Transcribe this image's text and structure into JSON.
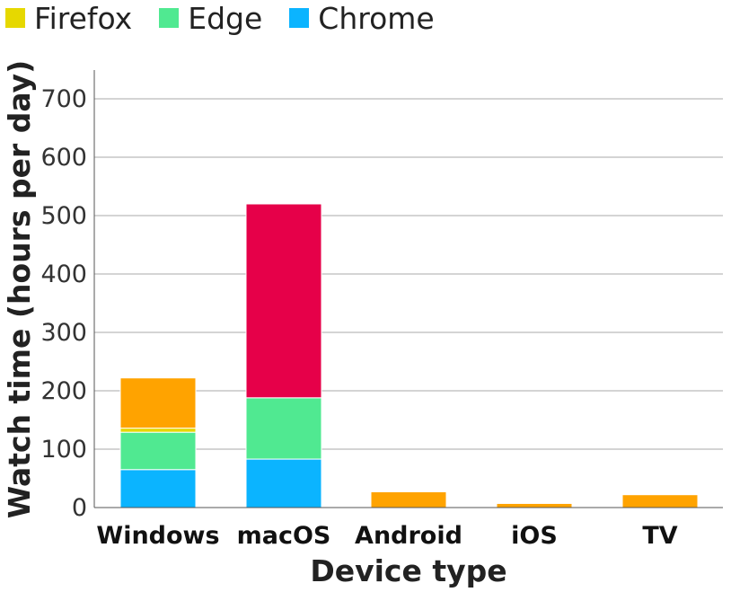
{
  "chart_data": {
    "type": "bar",
    "stacked": true,
    "title": "",
    "xlabel": "Device type",
    "ylabel": "Watch time (hours per day)",
    "ylim": [
      0,
      750
    ],
    "yticks": [
      0,
      100,
      200,
      300,
      400,
      500,
      600,
      700
    ],
    "grid": true,
    "legend_position": "top-left",
    "categories": [
      "Windows",
      "macOS",
      "Android",
      "iOS",
      "TV"
    ],
    "series": [
      {
        "name": "Chrome",
        "color": "#0BB4FF",
        "values": [
          65,
          83,
          0,
          0,
          0
        ]
      },
      {
        "name": "Edge",
        "color": "#50E991",
        "values": [
          64,
          105,
          0,
          0,
          0
        ]
      },
      {
        "name": "Firefox",
        "color": "#E6D800",
        "values": [
          7,
          0,
          0,
          0,
          0
        ]
      },
      {
        "name": "",
        "color": "#E60049",
        "values": [
          0,
          332,
          0,
          0,
          0
        ]
      },
      {
        "name": "",
        "color": "#FFA300",
        "values": [
          86,
          0,
          27,
          7,
          22
        ]
      }
    ],
    "legend_order": [
      2,
      1,
      0
    ]
  }
}
